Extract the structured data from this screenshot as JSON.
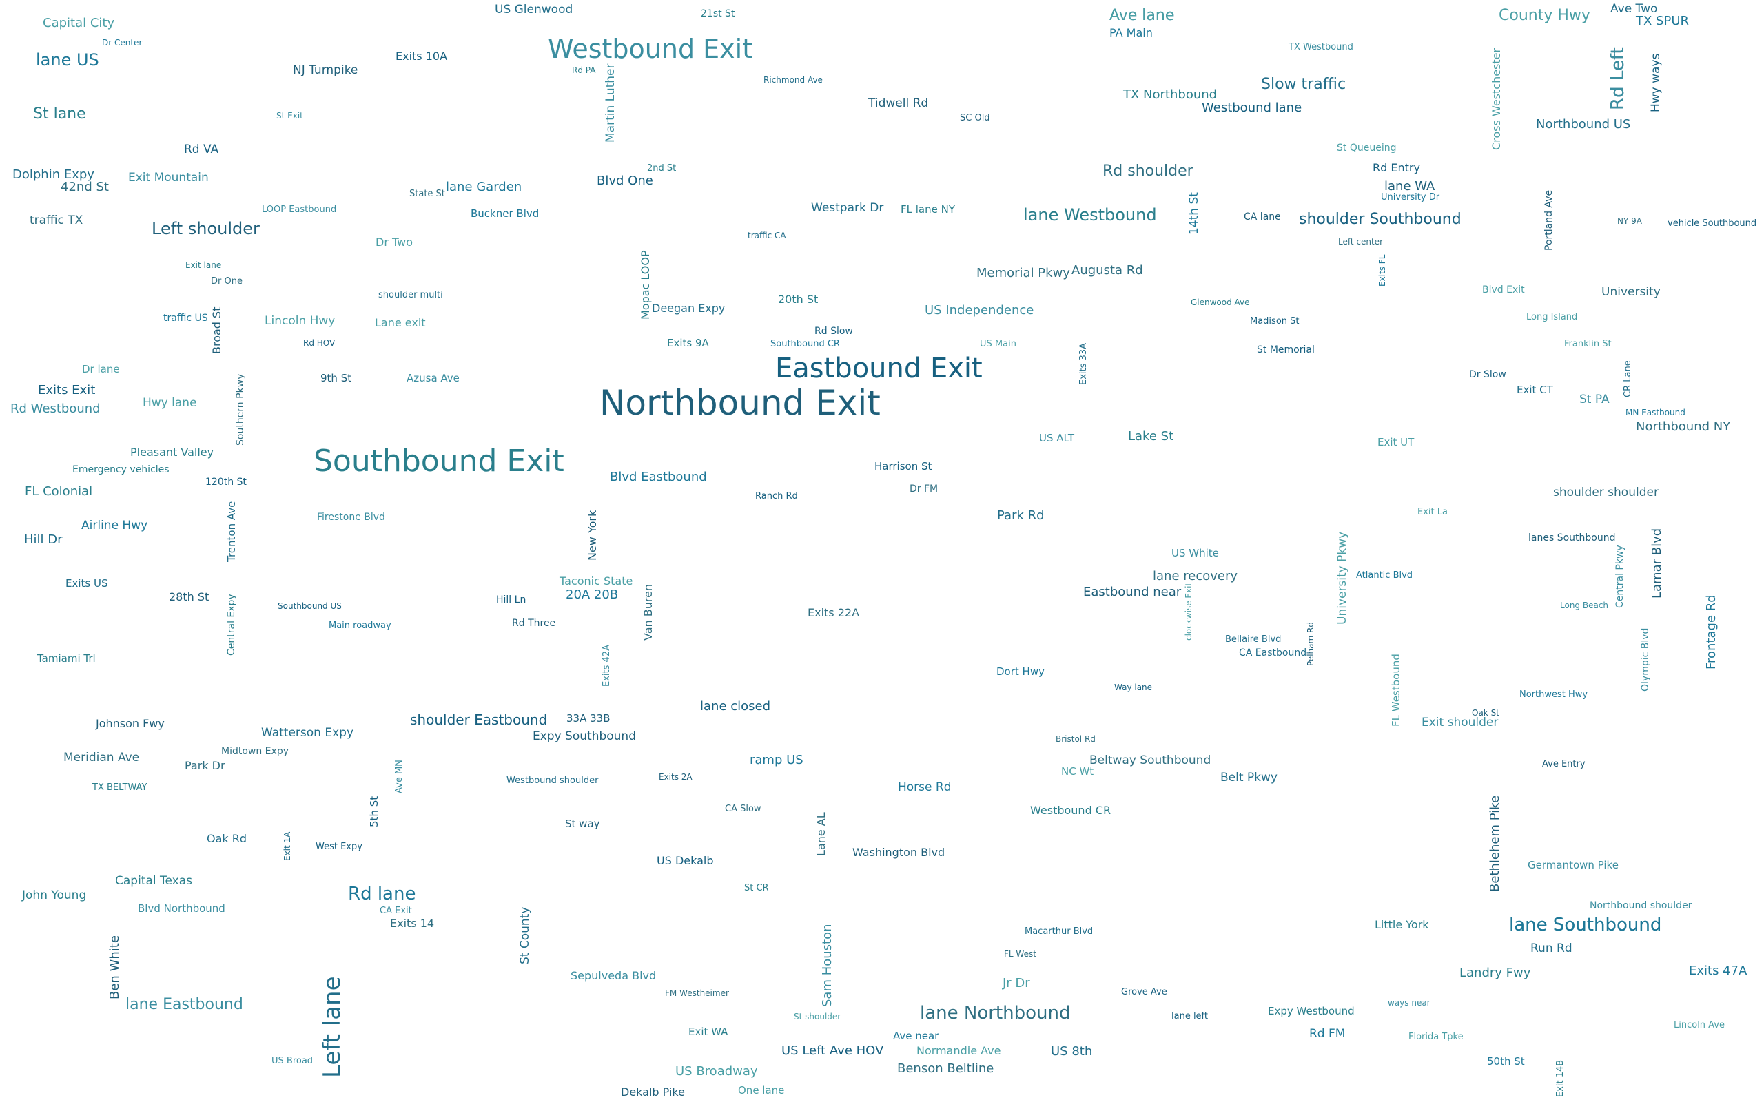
{
  "wordcloud": {
    "palette": [
      "#1f5f7a",
      "#2a7f8c",
      "#3b8ea0",
      "#176080",
      "#226e8a",
      "#4a9fa5",
      "#2f6f82",
      "#1e7898"
    ],
    "words": [
      "Northbound Exit",
      "Southbound Exit",
      "Westbound Exit",
      "Eastbound Exit",
      "Left lane",
      "lane Southbound",
      "lane Northbound",
      "Rd lane",
      "Left shoulder",
      "lane Westbound",
      "lane Eastbound",
      "shoulder Southbound",
      "Slow traffic",
      "County Hwy",
      "Rd shoulder",
      "Ave lane",
      "Rd Left",
      "St lane",
      "Rd Westbound",
      "shoulder Eastbound",
      "traffic CA",
      "Capital City",
      "University",
      "lane US",
      "Bethlehem Pike",
      "TX BELTWAY",
      "US ALT",
      "West Expy",
      "Dolphin Expy",
      "Dr Two",
      "Bristol Rd",
      "MN Eastbound",
      "New York",
      "Westbound CR",
      "US White",
      "5th St",
      "Westbound shoulder",
      "Lane exit",
      "shoulder shoulder",
      "Blvd Eastbound",
      "28th St",
      "Exit lane",
      "Ave MN",
      "Exits Exit",
      "Richmond Ave",
      "NC Wt",
      "Lane AL",
      "PA Main",
      "Expy Southbound",
      "21st St",
      "US Broad",
      "Hill Ln",
      "Hill Dr",
      "Exit UT",
      "CA Slow",
      "traffic US",
      "Pelham Rd",
      "St CR",
      "Sepulveda Blvd",
      "Exits 10A",
      "Northbound US",
      "FL Westbound",
      "traffic TX",
      "Ave near",
      "Johnson Fwy",
      "Landry Fwy",
      "CA Exit",
      "US Dekalb",
      "Oak Rd",
      "Exit La",
      "Augusta Rd",
      "TX SPUR",
      "Exits 2A",
      "Tamiami Trl",
      "Germantown Pike",
      "Madison St",
      "Exit 1A",
      "Franklin St",
      "Exits 14",
      "20A 20B",
      "33A 33B",
      "Exits 9A",
      "Azusa Ave",
      "Way lane",
      "Exits US",
      "US Main",
      "Northbound NY",
      "Dr Center",
      "lanes Southbound",
      "Exit WA",
      "St PA",
      "Rd Slow",
      "Westpark Dr",
      "Ave lane",
      "lane recovery",
      "14th St",
      "Washington Blvd",
      "Pleasant Valley",
      "Exit Mountain",
      "Blvd One",
      "Watterson Expy",
      "St shoulder",
      "Midtown Expy",
      "Atlantic Blvd",
      "9th St",
      "John Young",
      "Long Beach",
      "lane closed",
      "CA Eastbound",
      "US Broadway",
      "Dr FM",
      "Rd FM",
      "St way",
      "FL Colonial",
      "Firestone Blvd",
      "lane left",
      "Park Rd",
      "clockwise Exit",
      "Beltway Southbound",
      "Exits FL",
      "Oak St",
      "Expy Westbound",
      "TX Westbound",
      "Hwy ways",
      "Ave Two",
      "Cross Westchester",
      "FM Westheimer",
      "Buckner Blvd",
      "Ben White",
      "Rd PA",
      "St Exit",
      "vehicle Southbound",
      "shoulder multi",
      "Lincoln Hwy",
      "Benson Beltline",
      "Northwest Hwy",
      "Tidwell Rd",
      "Central Expy",
      "ways near",
      "Grove Ave",
      "Belt Pkwy",
      "Long Island",
      "42nd St",
      "50th St",
      "Portland Ave",
      "FL lane NY",
      "Martin Luther",
      "Rd Entry",
      "Macarthur Blvd",
      "St Queueing",
      "Van Buren",
      "University Dr",
      "SC Old",
      "2nd St",
      "Olympic Blvd",
      "Rd HOV",
      "Exit CT",
      "Dr lane",
      "Meridian Ave",
      "lane Garden",
      "CA lane",
      "Lake St",
      "Exit shoulder",
      "Ranch Rd",
      "Exits 33A",
      "Florida Tpke",
      "Southern Pkwy",
      "Dort Hwy",
      "Ave Entry",
      "Exit 14B",
      "Exits 42A",
      "Harrison St",
      "Run Rd",
      "Hwy lane",
      "NY 9A",
      "Southbound CR",
      "Lamar Blvd",
      "Emergency vehicles",
      "Central Pkwy",
      "US Left Ave HOV",
      "US Glenwood",
      "Taconic State",
      "Exits 22A",
      "lane Southbound",
      "Broad St",
      "TX Northbound",
      "Blvd Northbound",
      "Dr Slow",
      "US 8th",
      "Blvd Exit",
      "State St",
      "Airline Hwy",
      "Rd Three",
      "Glenwood Ave",
      "Sam Houston",
      "Westbound lane",
      "Trenton Ave",
      "Jr Dr",
      "Left center",
      "Main roadway",
      "Eastbound near",
      "Little York",
      "LOOP Eastbound",
      "120th St",
      "Bellaire Blvd",
      "Lincoln Ave",
      "Park Dr",
      "Frontage Rd",
      "Dekalb Pike",
      "Capital Texas",
      "US Independence",
      "Rd VA",
      "St County",
      "One lane",
      "FL West",
      "Horse Rd",
      "lane WA",
      "20th St",
      "Rd Left",
      "Southbound US",
      "Deegan Expy",
      "University Pkwy",
      "Memorial Pkwy",
      "Exits 47A",
      "NJ Turnpike",
      "Mopac LOOP",
      "Northbound shoulder",
      "St Memorial",
      "CR Lane",
      "Normandie Ave",
      "Dr One",
      "ramp US"
    ]
  }
}
